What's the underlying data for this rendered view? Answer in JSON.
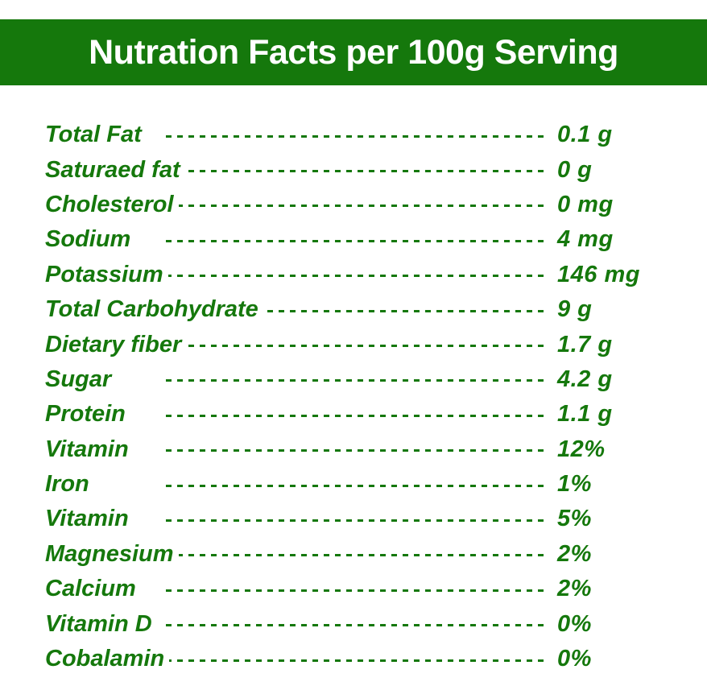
{
  "header": {
    "title": "Nutration Facts per 100g Serving"
  },
  "colors": {
    "brand_green": "#15780c",
    "text_white": "#ffffff"
  },
  "facts": [
    {
      "label": "Total Fat",
      "value": "0.1 g"
    },
    {
      "label": "Saturaed fat",
      "value": "0 g"
    },
    {
      "label": "Cholesterol",
      "value": "0 mg"
    },
    {
      "label": "Sodium",
      "value": "4 mg"
    },
    {
      "label": "Potassium",
      "value": "146 mg"
    },
    {
      "label": "Total Carbohydrate",
      "value": "9 g"
    },
    {
      "label": "Dietary fiber",
      "value": "1.7 g"
    },
    {
      "label": "Sugar",
      "value": "4.2 g"
    },
    {
      "label": "Protein",
      "value": "1.1 g"
    },
    {
      "label": "Vitamin",
      "value": "12%"
    },
    {
      "label": "Iron",
      "value": "1%"
    },
    {
      "label": "Vitamin",
      "value": "5%"
    },
    {
      "label": "Magnesium",
      "value": "2%"
    },
    {
      "label": "Calcium",
      "value": "2%"
    },
    {
      "label": "Vitamin D",
      "value": "0%"
    },
    {
      "label": "Cobalamin",
      "value": "0%"
    }
  ]
}
